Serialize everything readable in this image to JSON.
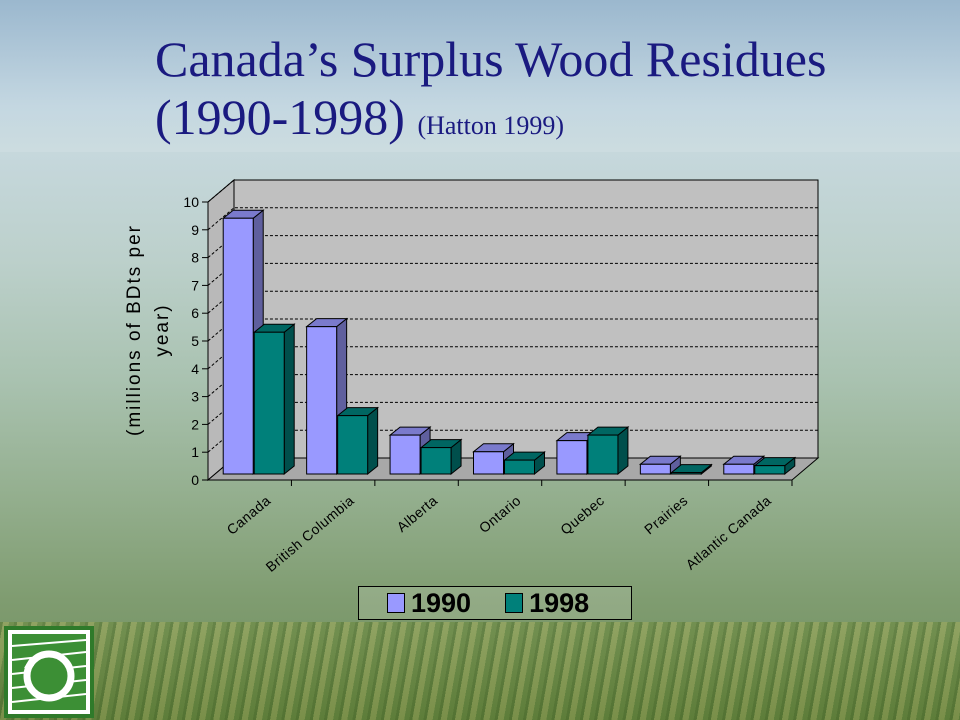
{
  "title": {
    "main_line1": "Canada’s Surplus Wood Residues",
    "main_line2": "(1990-1998)",
    "source": "(Hatton 1999)"
  },
  "chart_data": {
    "type": "bar",
    "categories": [
      "Canada",
      "British Columbia",
      "Alberta",
      "Ontario",
      "Quebec",
      "Prairies",
      "Atlantic Canada"
    ],
    "series": [
      {
        "name": "1990",
        "values": [
          9.2,
          5.3,
          1.4,
          0.8,
          1.2,
          0.35,
          0.35
        ],
        "color": "#9999ff"
      },
      {
        "name": "1998",
        "values": [
          5.1,
          2.1,
          0.95,
          0.5,
          1.4,
          0.05,
          0.3
        ],
        "color": "#00807a"
      }
    ],
    "ylabel": "(millions of BDts per year)",
    "ylabel_lines": [
      "(millions of BDts per",
      "year)"
    ],
    "yticks": [
      "0",
      "1",
      "2",
      "3",
      "4",
      "5",
      "6",
      "7",
      "8",
      "9",
      "10"
    ],
    "ylim": [
      0,
      10
    ],
    "grid": true,
    "legend_position": "bottom"
  }
}
